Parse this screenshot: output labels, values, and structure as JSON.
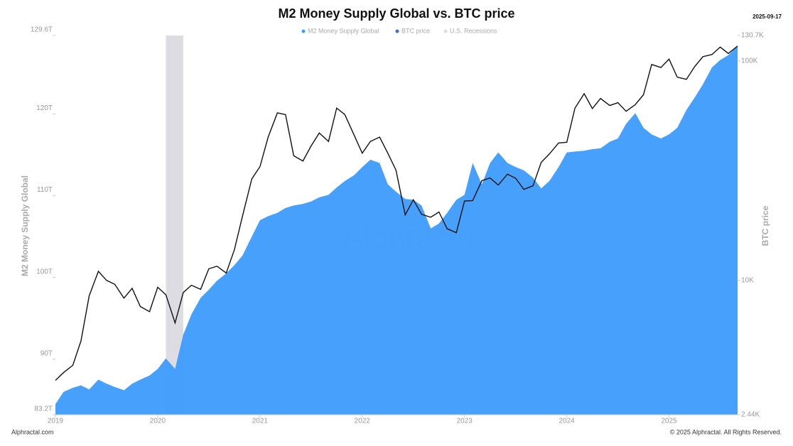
{
  "chart_data": {
    "type": "area-line",
    "title": "M2 Money Supply Global vs. BTC price",
    "date": "2025-09-17",
    "ylabel": "M2 Money Supply Global",
    "y2label": "BTC price",
    "watermark": "Alphractal",
    "footer_left": "Alphractal.com",
    "footer_right": "© 2025 Alphractal. All Rights Reserved.",
    "x": [
      2019.0,
      2019.08,
      2019.17,
      2019.25,
      2019.33,
      2019.42,
      2019.5,
      2019.58,
      2019.67,
      2019.75,
      2019.83,
      2019.92,
      2020.0,
      2020.08,
      2020.17,
      2020.25,
      2020.33,
      2020.42,
      2020.5,
      2020.58,
      2020.67,
      2020.75,
      2020.83,
      2020.92,
      2021.0,
      2021.08,
      2021.17,
      2021.25,
      2021.33,
      2021.42,
      2021.5,
      2021.58,
      2021.67,
      2021.75,
      2021.83,
      2021.92,
      2022.0,
      2022.08,
      2022.17,
      2022.25,
      2022.33,
      2022.42,
      2022.5,
      2022.58,
      2022.67,
      2022.75,
      2022.83,
      2022.92,
      2023.0,
      2023.08,
      2023.17,
      2023.25,
      2023.33,
      2023.42,
      2023.5,
      2023.58,
      2023.67,
      2023.75,
      2023.83,
      2023.92,
      2024.0,
      2024.08,
      2024.17,
      2024.25,
      2024.33,
      2024.42,
      2024.5,
      2024.58,
      2024.67,
      2024.75,
      2024.83,
      2024.92,
      2025.0,
      2025.08,
      2025.17,
      2025.25,
      2025.33,
      2025.42,
      2025.5,
      2025.58,
      2025.67
    ],
    "xlim": [
      2019,
      2025.67
    ],
    "xticks": [
      2019,
      2020,
      2021,
      2022,
      2023,
      2024,
      2025
    ],
    "ylim": [
      83.2,
      129.6
    ],
    "yticks": [
      {
        "value": 83.2,
        "label": "83.2T"
      },
      {
        "value": 90,
        "label": "90T"
      },
      {
        "value": 100,
        "label": "100T"
      },
      {
        "value": 110,
        "label": "110T"
      },
      {
        "value": 120,
        "label": "120T"
      },
      {
        "value": 129.6,
        "label": "129.6T"
      }
    ],
    "y2lim": [
      2.44,
      130.7
    ],
    "y2log": true,
    "y2ticks": [
      {
        "value": 2.44,
        "label": "2.44K"
      },
      {
        "value": 10,
        "label": "10K"
      },
      {
        "value": 100,
        "label": "100K"
      },
      {
        "value": 130.7,
        "label": "130.7K"
      }
    ],
    "series": [
      {
        "name": "M2 Money Supply Global",
        "color": "#3d9bfb",
        "kind": "area",
        "values": [
          84.5,
          86.0,
          86.5,
          86.8,
          86.3,
          87.5,
          87.0,
          86.6,
          86.2,
          87.0,
          87.5,
          88.0,
          88.8,
          90.1,
          88.8,
          93.0,
          95.5,
          97.5,
          98.5,
          99.6,
          100.5,
          101.5,
          102.7,
          105.0,
          107.0,
          107.5,
          107.9,
          108.5,
          108.8,
          109.0,
          109.3,
          109.8,
          110.1,
          111.0,
          111.8,
          112.5,
          113.5,
          114.4,
          114.0,
          111.4,
          110.5,
          109.6,
          109.5,
          108.8,
          106.0,
          106.6,
          107.9,
          109.5,
          110.1,
          114.0,
          111.4,
          114.0,
          115.3,
          114.0,
          113.5,
          113.1,
          112.2,
          110.9,
          111.8,
          113.5,
          115.3,
          115.4,
          115.5,
          115.7,
          115.8,
          116.6,
          117.0,
          118.8,
          120.1,
          118.3,
          117.5,
          117.0,
          117.5,
          118.3,
          120.5,
          122.0,
          123.6,
          125.7,
          126.6,
          127.2,
          128.3
        ]
      },
      {
        "name": "BTC price",
        "color": "#111111",
        "kind": "line",
        "axis": "y2",
        "values": [
          3.5,
          3.8,
          4.1,
          5.3,
          8.5,
          11,
          10,
          9.6,
          8.3,
          9.2,
          7.6,
          7.2,
          9.3,
          8.6,
          6.4,
          8.8,
          9.5,
          9.1,
          11.3,
          11.6,
          10.8,
          13.8,
          19.7,
          29,
          33,
          45,
          58,
          57,
          37,
          35,
          41,
          47,
          43,
          61,
          57,
          46,
          38,
          43,
          45,
          38,
          31.8,
          19.9,
          23.3,
          20,
          19.4,
          20.5,
          17.2,
          16.5,
          23,
          23.1,
          28.5,
          29.3,
          27.2,
          30.5,
          29.2,
          26,
          27,
          34.5,
          37.7,
          42.3,
          42.6,
          61,
          71,
          60.7,
          67.5,
          62.7,
          64.6,
          59,
          63.3,
          70.2,
          96.4,
          93.4,
          102,
          84.4,
          82.5,
          94.2,
          104.6,
          107.1,
          115.8,
          108.2,
          117
        ]
      }
    ],
    "recessions": {
      "name": "U.S. Recessions",
      "color": "#dcdce2",
      "ranges": [
        [
          2020.08,
          2020.25
        ]
      ]
    }
  }
}
